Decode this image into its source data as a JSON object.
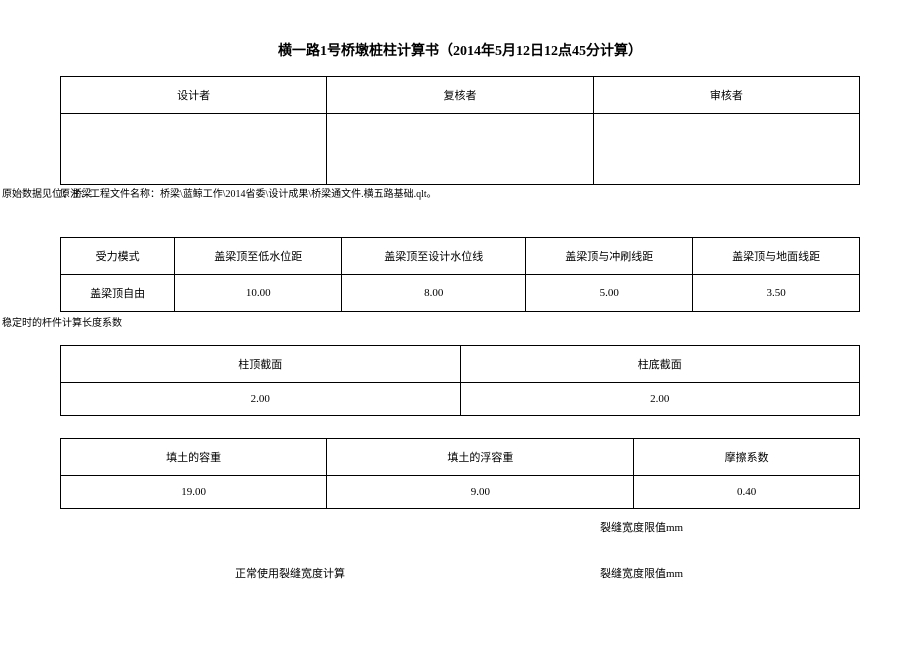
{
  "title": "横一路1号桥墩桩柱计算书（2014年5月12日12点45分计算）",
  "signers": {
    "designer": "设计者",
    "reviewer": "复核者",
    "approver": "审核者"
  },
  "note_line": "原注：工程文件名称：桥梁\\蓝鲸工作\\2014省委\\设计成果\\桥梁通文件.横五路基础.qlt。",
  "note_overlap": "原始数据见位：桥梁",
  "table1": {
    "headers": [
      "受力模式",
      "盖梁顶至低水位距",
      "盖梁顶至设计水位线",
      "盖梁顶与冲刷线距",
      "盖梁顶与地面线距"
    ],
    "row": [
      "盖梁顶自由",
      "10.00",
      "8.00",
      "5.00",
      "3.50"
    ]
  },
  "caption1": "稳定时的杆件计算长度系数",
  "table2": {
    "headers": [
      "柱顶截面",
      "柱底截面"
    ],
    "row": [
      "2.00",
      "2.00"
    ]
  },
  "table3": {
    "headers": [
      "填土的容重",
      "填土的浮容重",
      "摩擦系数"
    ],
    "row": [
      "19.00",
      "9.00",
      "0.40"
    ]
  },
  "crack": {
    "limit_label": "裂缝宽度限值mm",
    "calc_label": "正常使用裂缝宽度计算"
  }
}
